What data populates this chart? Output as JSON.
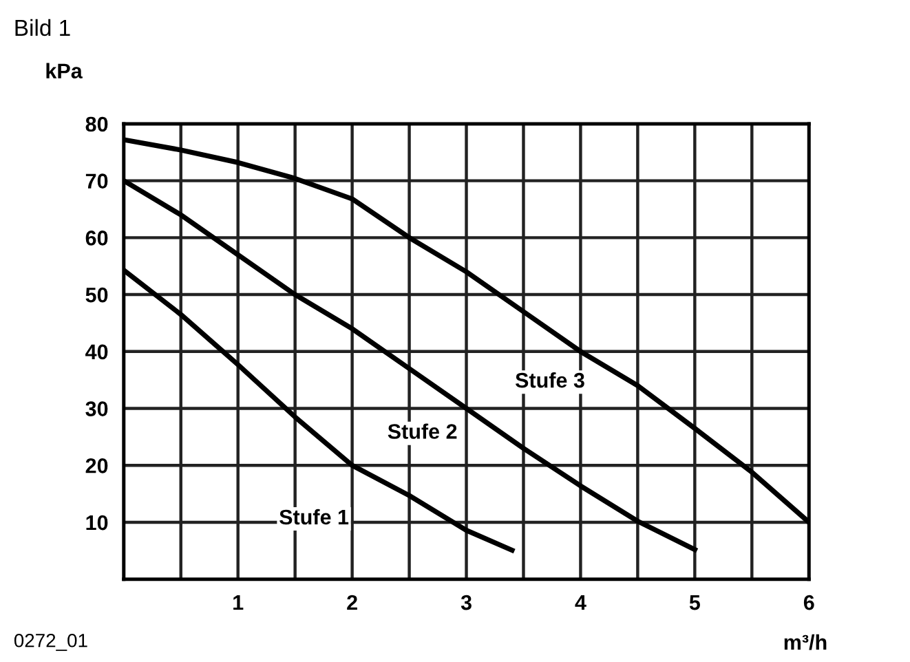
{
  "chart_data": {
    "type": "line",
    "title": "Bild 1",
    "ylabel": "kPa",
    "xlabel": "m³/h",
    "annotations": [
      "0272_01"
    ],
    "xlim": [
      0,
      6
    ],
    "ylim": [
      0,
      80
    ],
    "xticks": [
      {
        "value": 0.5,
        "label": null
      },
      1,
      {
        "value": 1.5,
        "label": null
      },
      2,
      {
        "value": 2.5,
        "label": null
      },
      3,
      {
        "value": 3.5,
        "label": null
      },
      4,
      {
        "value": 4.5,
        "label": null
      },
      5,
      {
        "value": 5.5,
        "label": null
      },
      6
    ],
    "yticks": [
      10,
      20,
      30,
      40,
      50,
      60,
      70,
      80
    ],
    "grid": true,
    "marker": "none",
    "line_style": "solid",
    "series": [
      {
        "name": "Stufe 1",
        "color": "#000000",
        "x": [
          0,
          0.5,
          1,
          1.5,
          2,
          2.5,
          3,
          3.4
        ],
        "values": [
          54.3,
          46.5,
          37.7,
          28.5,
          20,
          14.7,
          8.6,
          5.1
        ]
      },
      {
        "name": "Stufe 2",
        "color": "#000000",
        "x": [
          0,
          0.5,
          1,
          1.5,
          2,
          2.5,
          3,
          3.5,
          4,
          4.5,
          5
        ],
        "values": [
          70,
          64,
          57,
          50,
          44,
          37,
          30,
          23,
          16.4,
          10.2,
          5.2
        ]
      },
      {
        "name": "Stufe 3",
        "color": "#000000",
        "x": [
          0,
          0.5,
          1,
          1.5,
          2,
          2.5,
          3,
          3.5,
          4,
          4.5,
          5,
          5.5,
          6
        ],
        "values": [
          77.2,
          75.4,
          73.2,
          70.4,
          66.8,
          60,
          54,
          47,
          40,
          34,
          26.5,
          18.8,
          10
        ]
      }
    ]
  }
}
